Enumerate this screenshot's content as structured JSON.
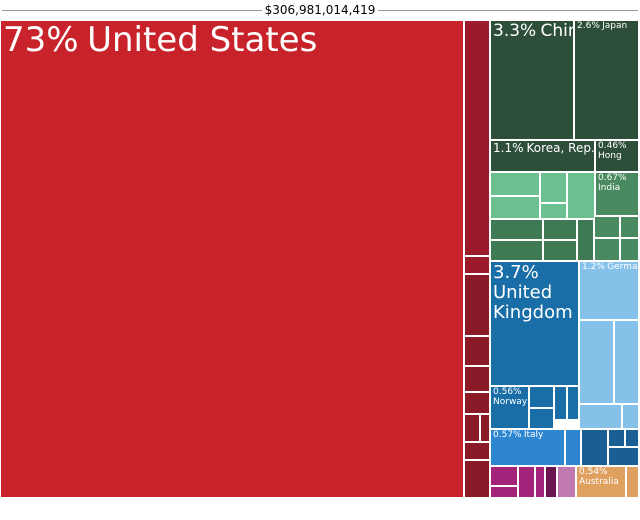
{
  "chart_data": {
    "type": "treemap",
    "title": "$306,981,014,419",
    "categories": [
      "United States",
      "China",
      "Japan",
      "Korea, Rep.",
      "Hong",
      "India",
      "United Kingdom",
      "Germany",
      "Norway",
      "Italy",
      "Australia"
    ],
    "values": [
      73,
      3.3,
      2.6,
      1.1,
      0.46,
      0.67,
      3.7,
      1.2,
      0.56,
      0.57,
      0.54
    ],
    "value_labels": [
      "73%",
      "3.3%",
      "2.6%",
      "1.1%",
      "0.46%",
      "0.67%",
      "3.7%",
      "1.2%",
      "0.56%",
      "0.57%",
      "0.54%"
    ],
    "colors": [
      "#c8232a",
      "#2d4f3a",
      "#2d4f3a",
      "#2d4f3a",
      "#2d4f3a",
      "#4a8a60",
      "#1a6ea8",
      "#85c1e9",
      "#1a6ea8",
      "#2e86d1",
      "#e0a060"
    ]
  }
}
